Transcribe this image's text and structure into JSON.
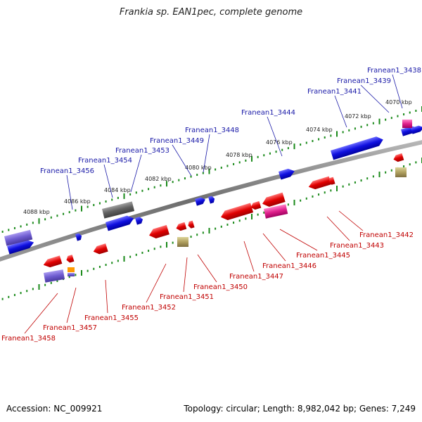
{
  "header": {
    "title": "Frankia sp. EAN1pec, complete genome"
  },
  "footer": {
    "accession": "Accession: NC_009921",
    "summary": "Topology: circular; Length: 8,982,042 bp; Genes: 7,249"
  },
  "colors": {
    "forward_gene": "#1010e0",
    "reverse_gene": "#e00000",
    "backbone": "#7a7a7a",
    "tick": "#1a8a1a",
    "label_forward": "#1a1aa8",
    "label_reverse": "#c00000"
  },
  "ticks": [
    "4070 kbp",
    "4072 kbp",
    "4074 kbp",
    "4076 kbp",
    "4078 kbp",
    "4080 kbp",
    "4082 kbp",
    "4084 kbp",
    "4086 kbp",
    "4088 kbp"
  ],
  "genes_top": [
    "Franean1_3438",
    "Franean1_3439",
    "Franean1_3441",
    "Franean1_3444",
    "Franean1_3448",
    "Franean1_3449",
    "Franean1_3453",
    "Franean1_3454",
    "Franean1_3456"
  ],
  "genes_bottom": [
    "Franean1_3442",
    "Franean1_3443",
    "Franean1_3445",
    "Franean1_3446",
    "Franean1_3447",
    "Franean1_3450",
    "Franean1_3451",
    "Franean1_3452",
    "Franean1_3455",
    "Franean1_3457",
    "Franean1_3458"
  ]
}
